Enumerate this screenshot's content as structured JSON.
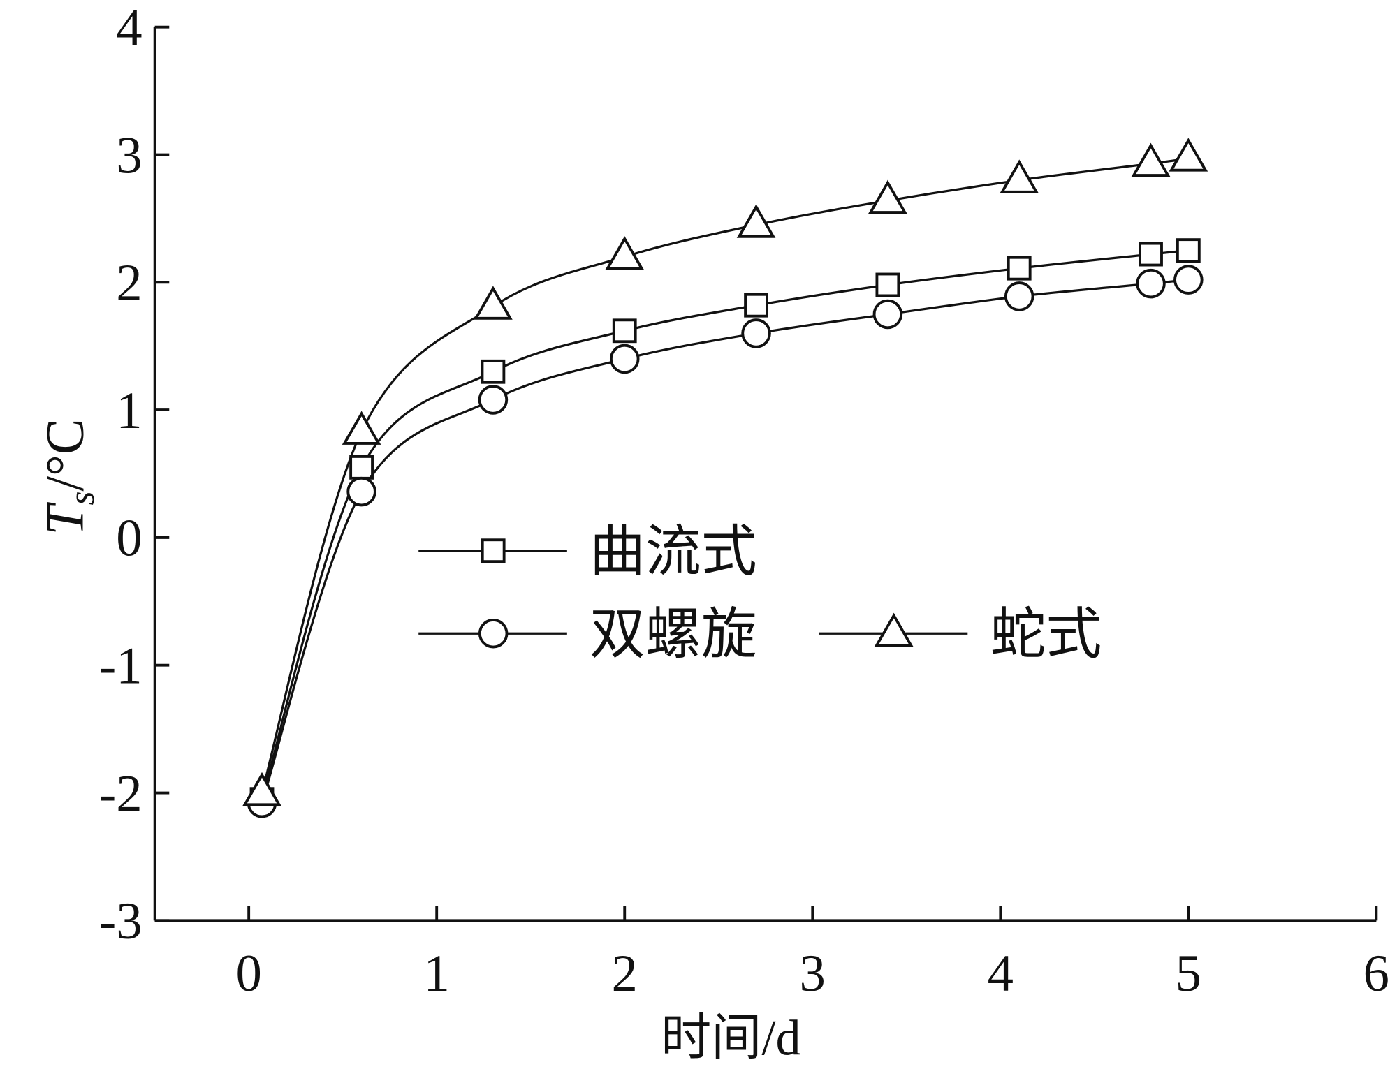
{
  "chart_data": {
    "type": "line",
    "title": "",
    "xlabel": "时间/d",
    "ylabel": {
      "main": "T",
      "sub": "s",
      "unit": "/°C"
    },
    "xlim": [
      -0.5,
      6
    ],
    "ylim": [
      -3,
      4
    ],
    "xticks": [
      0,
      1,
      2,
      3,
      4,
      5,
      6
    ],
    "yticks": [
      -3,
      -2,
      -1,
      0,
      1,
      2,
      3,
      4
    ],
    "grid": false,
    "legend_placement": "center",
    "x": [
      0.07,
      0.6,
      1.3,
      2.0,
      2.7,
      3.4,
      4.1,
      4.8,
      5.0
    ],
    "series": [
      {
        "name": "曲流式",
        "marker": "square",
        "values": [
          -2.05,
          0.55,
          1.3,
          1.62,
          1.82,
          1.98,
          2.11,
          2.22,
          2.25
        ]
      },
      {
        "name": "双螺旋",
        "marker": "circle",
        "values": [
          -2.08,
          0.36,
          1.08,
          1.4,
          1.6,
          1.75,
          1.89,
          1.99,
          2.02
        ]
      },
      {
        "name": "蛇式",
        "marker": "triangle",
        "values": [
          -2.0,
          0.83,
          1.81,
          2.2,
          2.45,
          2.64,
          2.8,
          2.93,
          2.97
        ]
      }
    ],
    "colors": {
      "line": "#111111",
      "background": "#ffffff"
    }
  }
}
